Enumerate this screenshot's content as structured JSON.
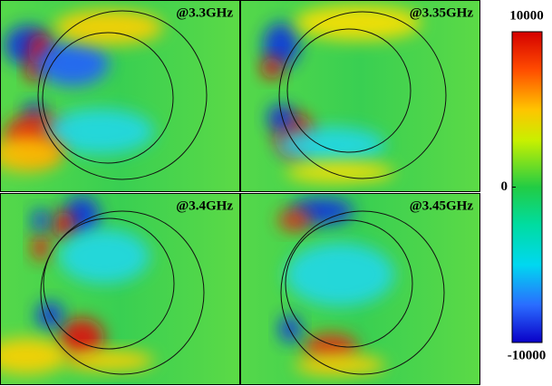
{
  "panels": [
    {
      "label": "@3.3GHz"
    },
    {
      "label": "@3.35GHz"
    },
    {
      "label": "@3.4GHz"
    },
    {
      "label": "@3.45GHz"
    }
  ],
  "colorbar": {
    "lim": [
      -10000,
      10000
    ],
    "ticks": [
      10000,
      0,
      -10000
    ]
  }
}
